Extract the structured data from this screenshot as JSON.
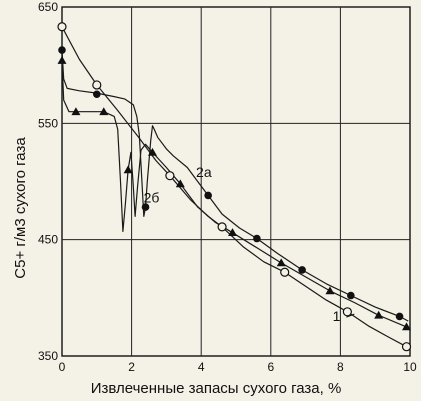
{
  "chart_data": {
    "type": "line",
    "title": "",
    "xlabel": "Извлеченные запасы сухого газа, %",
    "ylabel": "C5+ г/м3 сухого газа",
    "xlim": [
      0,
      10
    ],
    "ylim": [
      350,
      650
    ],
    "x_ticks": [
      0,
      2,
      4,
      6,
      8,
      10
    ],
    "y_ticks": [
      350,
      450,
      550,
      650
    ],
    "grid": true,
    "series": [
      {
        "name": "1",
        "marker": "open-circle",
        "points": [
          [
            0,
            633
          ],
          [
            1,
            583
          ],
          [
            3.1,
            505
          ],
          [
            4.6,
            461
          ],
          [
            6.4,
            422
          ],
          [
            8.2,
            388
          ],
          [
            9.9,
            358
          ]
        ],
        "curve": [
          [
            0,
            633
          ],
          [
            0.5,
            605
          ],
          [
            1,
            583
          ],
          [
            1.6,
            561
          ],
          [
            2.2,
            538
          ],
          [
            2.7,
            518
          ],
          [
            3.1,
            505
          ],
          [
            3.7,
            484
          ],
          [
            4.2,
            470
          ],
          [
            4.6,
            461
          ],
          [
            5.2,
            444
          ],
          [
            5.8,
            431
          ],
          [
            6.4,
            422
          ],
          [
            7,
            410
          ],
          [
            7.6,
            398
          ],
          [
            8.2,
            388
          ],
          [
            8.8,
            376
          ],
          [
            9.4,
            366
          ],
          [
            9.9,
            358
          ]
        ]
      },
      {
        "name": "2а",
        "marker": "filled-circle",
        "points": [
          [
            0,
            613
          ],
          [
            1,
            575
          ],
          [
            2.4,
            478
          ],
          [
            4.2,
            488
          ],
          [
            5.6,
            451
          ],
          [
            6.9,
            424
          ],
          [
            8.3,
            402
          ],
          [
            9.7,
            384
          ]
        ],
        "curve": [
          [
            0,
            613
          ],
          [
            0.05,
            588
          ],
          [
            0.15,
            580
          ],
          [
            0.5,
            578
          ],
          [
            1,
            576
          ],
          [
            1.5,
            573
          ],
          [
            1.8,
            571
          ],
          [
            2.05,
            566
          ],
          [
            2.15,
            556
          ],
          [
            2.22,
            540
          ],
          [
            2.28,
            510
          ],
          [
            2.35,
            470
          ],
          [
            2.4,
            478
          ],
          [
            2.45,
            500
          ],
          [
            2.55,
            535
          ],
          [
            2.6,
            548
          ],
          [
            2.65,
            545
          ],
          [
            2.75,
            538
          ],
          [
            3,
            528
          ],
          [
            3.2,
            522
          ],
          [
            3.6,
            512
          ],
          [
            3.9,
            500
          ],
          [
            4.2,
            488
          ],
          [
            4.6,
            472
          ],
          [
            5.1,
            460
          ],
          [
            5.6,
            451
          ],
          [
            6.2,
            438
          ],
          [
            6.9,
            424
          ],
          [
            7.6,
            412
          ],
          [
            8.3,
            402
          ],
          [
            9,
            392
          ],
          [
            9.7,
            384
          ],
          [
            9.95,
            380
          ]
        ]
      },
      {
        "name": "2б",
        "marker": "filled-triangle",
        "points": [
          [
            0,
            604
          ],
          [
            0.4,
            560
          ],
          [
            1.2,
            560
          ],
          [
            1.9,
            510
          ],
          [
            2.6,
            525
          ],
          [
            3.4,
            498
          ],
          [
            4.9,
            456
          ],
          [
            6.3,
            430
          ],
          [
            7.7,
            406
          ],
          [
            9.1,
            385
          ],
          [
            9.9,
            375
          ]
        ],
        "curve": [
          [
            0,
            604
          ],
          [
            0.05,
            570
          ],
          [
            0.2,
            560
          ],
          [
            1.2,
            560
          ],
          [
            1.5,
            556
          ],
          [
            1.6,
            545
          ],
          [
            1.68,
            500
          ],
          [
            1.75,
            457
          ],
          [
            1.82,
            480
          ],
          [
            1.9,
            510
          ],
          [
            1.98,
            525
          ],
          [
            2.04,
            500
          ],
          [
            2.1,
            470
          ],
          [
            2.17,
            495
          ],
          [
            2.27,
            527
          ],
          [
            2.4,
            532
          ],
          [
            2.6,
            525
          ],
          [
            3,
            512
          ],
          [
            3.4,
            498
          ],
          [
            3.9,
            478
          ],
          [
            4.4,
            465
          ],
          [
            4.9,
            456
          ],
          [
            5.6,
            443
          ],
          [
            6.3,
            430
          ],
          [
            7,
            418
          ],
          [
            7.7,
            406
          ],
          [
            8.4,
            396
          ],
          [
            9.1,
            385
          ],
          [
            9.9,
            375
          ]
        ]
      }
    ],
    "curve_labels": [
      {
        "text": "1",
        "x": 8.0,
        "y": 380
      },
      {
        "text": "2а",
        "x": 4.3,
        "y": 504
      },
      {
        "text": "2б",
        "x": 2.8,
        "y": 482
      }
    ]
  }
}
